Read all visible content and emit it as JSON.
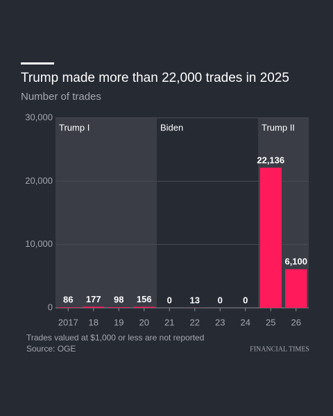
{
  "chart_data": {
    "type": "bar",
    "title": "Trump made more than 22,000 trades in 2025",
    "subtitle": "Number of trades",
    "categories": [
      "2017",
      "18",
      "19",
      "20",
      "21",
      "22",
      "23",
      "24",
      "25",
      "26"
    ],
    "values": [
      86,
      177,
      98,
      156,
      0,
      13,
      0,
      0,
      22136,
      6100
    ],
    "value_labels": [
      "86",
      "177",
      "98",
      "156",
      "0",
      "13",
      "0",
      "0",
      "22,136",
      "6,100"
    ],
    "color": "#ff1a5c",
    "ylim": [
      0,
      30000
    ],
    "yticks": [
      0,
      {
        "value": 10000,
        "label": "10,000"
      },
      {
        "value": 20000,
        "label": "20,000"
      },
      {
        "value": 30000,
        "label": "30,000"
      }
    ],
    "grid": true,
    "periods": [
      {
        "label": "Trump I",
        "from": "2017",
        "to": "20",
        "color": "#3a3d46"
      },
      {
        "label": "Biden",
        "from": "21",
        "to": "24",
        "color": "#262a33"
      },
      {
        "label": "Trump II",
        "from": "25",
        "to": "26",
        "color": "#3a3d46"
      }
    ],
    "note": "Trades valued at $1,000 or less are not reported",
    "source": "Source: OGE",
    "brand": "FINANCIAL TIMES"
  }
}
